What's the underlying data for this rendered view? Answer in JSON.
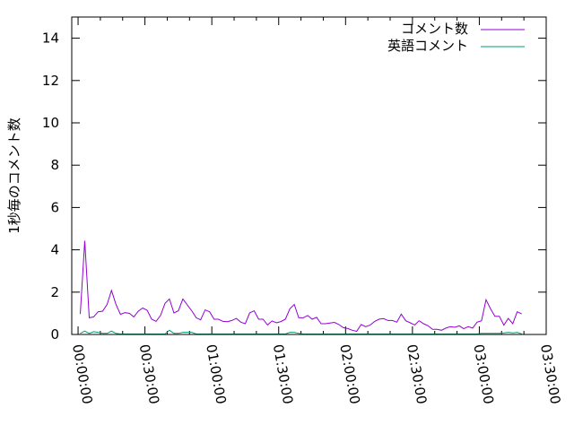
{
  "chart_data": {
    "type": "line",
    "title": "",
    "xlabel": "",
    "ylabel": "1秒毎のコメント数",
    "ylim": [
      0,
      15
    ],
    "xlim": [
      "-00:02:50",
      "03:30:00"
    ],
    "yticks": [
      "0",
      "2",
      "4",
      "6",
      "8",
      "10",
      "12",
      "14"
    ],
    "xticks": [
      "00:00:00",
      "00:30:00",
      "01:00:00",
      "01:30:00",
      "02:00:00",
      "02:30:00",
      "03:00:00",
      "03:30:00"
    ],
    "grid": false,
    "legend_position": "top-right",
    "x": [
      1,
      3,
      5,
      7,
      9,
      11,
      13,
      15,
      17,
      19,
      21,
      23,
      25,
      27,
      29,
      31,
      33,
      35,
      37,
      39,
      41,
      43,
      45,
      47,
      49,
      51,
      53,
      55,
      57,
      59,
      61,
      63,
      65,
      67,
      69,
      71,
      73,
      75,
      77,
      79,
      81,
      83,
      85,
      87,
      89,
      91,
      93,
      95,
      97,
      99,
      101,
      103,
      105,
      107,
      109,
      111,
      113,
      115,
      117,
      119,
      121,
      123,
      125,
      127,
      129,
      131,
      133,
      135,
      137,
      139,
      141,
      143,
      145,
      147,
      149,
      151,
      153,
      155,
      157,
      159,
      161,
      163,
      165,
      167,
      169,
      171,
      173,
      175,
      177,
      179,
      181,
      183,
      185,
      187,
      189,
      191,
      193,
      195,
      197,
      199
    ],
    "x_unit": "minutes",
    "series": [
      {
        "name": "コメント数",
        "color": "#9400d3",
        "values": [
          0.97,
          4.43,
          0.79,
          0.83,
          1.07,
          1.1,
          1.42,
          2.08,
          1.42,
          0.95,
          1.03,
          1.0,
          0.83,
          1.1,
          1.25,
          1.14,
          0.72,
          0.62,
          0.9,
          1.47,
          1.68,
          1.02,
          1.12,
          1.68,
          1.4,
          1.12,
          0.79,
          0.69,
          1.16,
          1.07,
          0.72,
          0.72,
          0.62,
          0.6,
          0.66,
          0.76,
          0.58,
          0.51,
          1.02,
          1.12,
          0.72,
          0.72,
          0.45,
          0.64,
          0.55,
          0.61,
          0.72,
          1.21,
          1.42,
          0.79,
          0.79,
          0.9,
          0.72,
          0.81,
          0.51,
          0.51,
          0.54,
          0.57,
          0.47,
          0.32,
          0.28,
          0.2,
          0.15,
          0.47,
          0.37,
          0.44,
          0.61,
          0.72,
          0.75,
          0.66,
          0.66,
          0.58,
          0.96,
          0.65,
          0.55,
          0.45,
          0.65,
          0.51,
          0.41,
          0.24,
          0.24,
          0.2,
          0.3,
          0.37,
          0.34,
          0.41,
          0.27,
          0.37,
          0.3,
          0.58,
          0.65,
          1.64,
          1.22,
          0.86,
          0.86,
          0.44,
          0.76,
          0.51,
          1.07,
          0.97
        ]
      },
      {
        "name": "英語コメント",
        "color": "#009e73",
        "values": [
          0.05,
          0.16,
          0.05,
          0.13,
          0.1,
          0.05,
          0.05,
          0.16,
          0.05,
          0.02,
          0.02,
          0.02,
          0.02,
          0.02,
          0.02,
          0.02,
          0.02,
          0.02,
          0.02,
          0.02,
          0.2,
          0.05,
          0.05,
          0.1,
          0.1,
          0.1,
          0.02,
          0.02,
          0.02,
          0.02,
          0.02,
          0.02,
          0.02,
          0.02,
          0.02,
          0.02,
          0.02,
          0.02,
          0.02,
          0.02,
          0.02,
          0.02,
          0.02,
          0.02,
          0.02,
          0.02,
          0.02,
          0.1,
          0.1,
          0.05,
          0.02,
          0.02,
          0.02,
          0.02,
          0.02,
          0.02,
          0.02,
          0.02,
          0.02,
          0.02,
          0.02,
          0.02,
          0.02,
          0.02,
          0.02,
          0.02,
          0.02,
          0.02,
          0.02,
          0.02,
          0.02,
          0.02,
          0.02,
          0.02,
          0.02,
          0.02,
          0.02,
          0.02,
          0.02,
          0.02,
          0.02,
          0.02,
          0.02,
          0.02,
          0.02,
          0.02,
          0.02,
          0.02,
          0.02,
          0.02,
          0.05,
          0.05,
          0.05,
          0.05,
          0.05,
          0.07,
          0.1,
          0.07,
          0.1,
          0.03
        ]
      }
    ]
  }
}
